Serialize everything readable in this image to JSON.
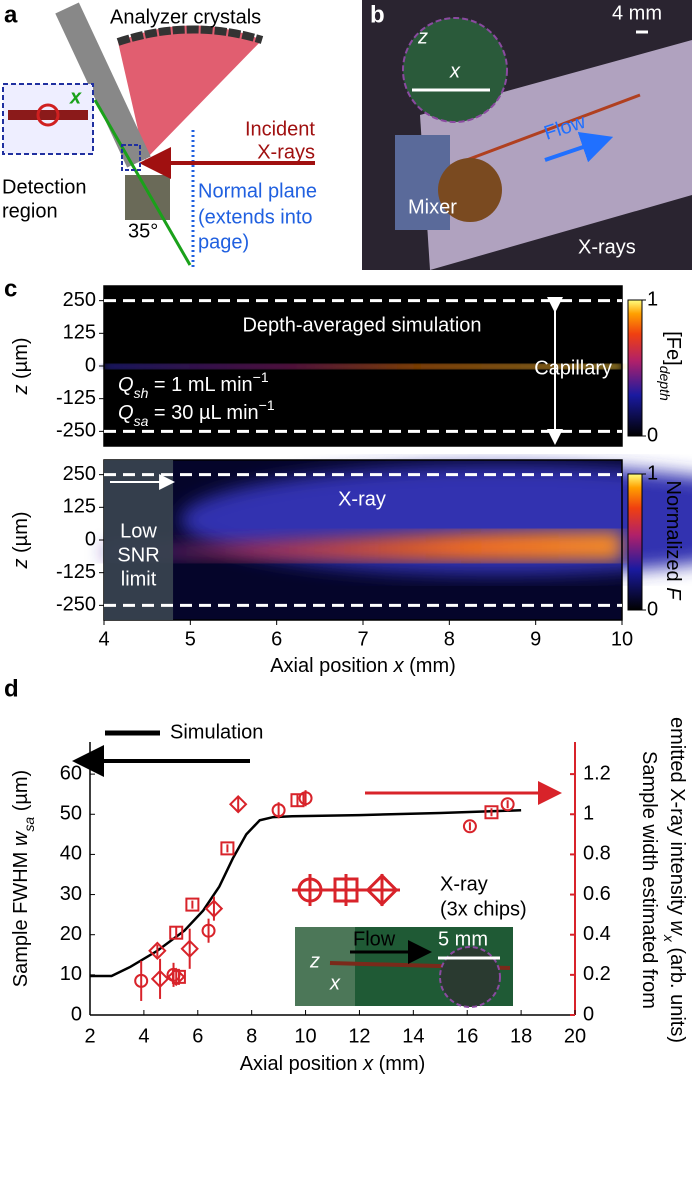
{
  "panel_a": {
    "label": "a",
    "analyzer": "Analyzer crystals",
    "incident": [
      "Incident",
      "X-rays"
    ],
    "axis_x": "x",
    "detection": [
      "Detection",
      "region"
    ],
    "angle": "35°",
    "normal_plane": [
      "Normal plane",
      "(extends into",
      "page)"
    ]
  },
  "panel_b": {
    "label": "b",
    "scale": "4 mm",
    "z": "z",
    "x": "x",
    "flow": "Flow",
    "mixer": "Mixer",
    "xrays": "X-rays"
  },
  "chart_data": [
    {
      "type": "heatmap",
      "panel_label": "c",
      "annotation": "Depth-averaged simulation",
      "flow_rates": [
        {
          "var": "Q",
          "sub": "sh",
          "rest": " = 1 mL min",
          "sup": "−1"
        },
        {
          "var": "Q",
          "sub": "sa",
          "rest": " = 30 µL min",
          "sup": "−1"
        }
      ],
      "capillary": "Capillary",
      "colorbar_label": {
        "text": "[Fe]",
        "sub": "depth"
      },
      "clim": [
        0,
        1
      ],
      "cticks": [
        0,
        1
      ],
      "xlim": [
        4,
        10
      ],
      "ylim": [
        -306,
        306
      ],
      "yticks": [
        250,
        125,
        0,
        -125,
        -250
      ],
      "ylabel": {
        "var": "z",
        "unit": " (µm)"
      },
      "walls": [
        250,
        -250
      ]
    },
    {
      "type": "heatmap",
      "annotation": "X-ray",
      "snr_label": [
        "Low",
        "SNR",
        "limit"
      ],
      "snr_limit": 4.8,
      "colorbar_label": {
        "text": "Normalized ",
        "var": "F"
      },
      "clim": [
        0,
        1
      ],
      "cticks": [
        0,
        1
      ],
      "xlim": [
        4,
        10
      ],
      "xticks": [
        4,
        5,
        6,
        7,
        8,
        9,
        10
      ],
      "ylim": [
        -306,
        306
      ],
      "yticks": [
        250,
        125,
        0,
        -125,
        -250
      ],
      "ylabel": {
        "var": "z",
        "unit": " (µm)"
      },
      "xlabel": {
        "text": "Axial position ",
        "var": "x",
        "unit": " (mm)"
      },
      "walls": [
        250,
        -250
      ]
    },
    {
      "type": "line_scatter",
      "panel_label": "d",
      "xlim": [
        2,
        20
      ],
      "xticks": [
        2,
        4,
        6,
        8,
        10,
        12,
        14,
        16,
        18,
        20
      ],
      "ylim": [
        0,
        68
      ],
      "yticks": [
        0,
        10,
        20,
        30,
        40,
        50,
        60
      ],
      "y2lim": [
        0,
        1.36
      ],
      "y2ticks": [
        0,
        0.2,
        0.4,
        0.6,
        0.8,
        1,
        1.2
      ],
      "xlabel": {
        "text": "Axial position ",
        "var": "x",
        "unit": " (mm)"
      },
      "ylabel": {
        "text": "Sample FWHM ",
        "var": "w",
        "sub": "sa",
        "unit": " (µm)"
      },
      "y2label": [
        {
          "text": "Sample width estimated from"
        },
        {
          "text": "emitted X-ray intensity ",
          "var": "w",
          "sub": "x",
          "unit": " (arb. units)"
        }
      ],
      "series": [
        {
          "name": "Simulation",
          "color": "#000000",
          "x": [
            2,
            2.8,
            3.5,
            4.5,
            5.5,
            6.2,
            6.8,
            7.3,
            7.8,
            8.3,
            8.8,
            9.5,
            12,
            15,
            18
          ],
          "values": [
            9.7,
            9.7,
            12,
            16,
            21,
            26,
            32,
            39,
            45,
            48.5,
            49.3,
            49.5,
            49.8,
            50.3,
            51
          ]
        }
      ],
      "points": {
        "name": [
          "X-ray",
          "(3x chips)"
        ],
        "color": "#d8232a",
        "axis": "y",
        "groups": [
          {
            "marker": "circle",
            "x": [
              3.9,
              5.1,
              6.4,
              9.0,
              10.0,
              16.1,
              17.5
            ],
            "values": [
              8.5,
              10,
              21,
              51,
              54,
              47,
              52.5
            ],
            "errors": [
              5,
              3,
              3,
              2,
              2,
              1,
              1
            ]
          },
          {
            "marker": "square",
            "x": [
              5.2,
              5.8,
              7.1,
              9.7,
              16.9,
              5.3
            ],
            "values": [
              20.5,
              27.5,
              41.5,
              53.5,
              50.5,
              9.5
            ],
            "errors": [
              1.5,
              1,
              1,
              1.5,
              1,
              2
            ]
          },
          {
            "marker": "diamond",
            "x": [
              4.6,
              5.7,
              6.6,
              7.5,
              4.5,
              5.2
            ],
            "values": [
              9,
              16.5,
              26.5,
              52.5,
              16,
              9.5
            ],
            "errors": [
              5,
              5,
              3,
              2,
              1.5,
              1.5
            ]
          }
        ]
      },
      "inset": {
        "flow": "Flow",
        "scale": "5 mm",
        "z": "z",
        "x": "x"
      }
    }
  ]
}
